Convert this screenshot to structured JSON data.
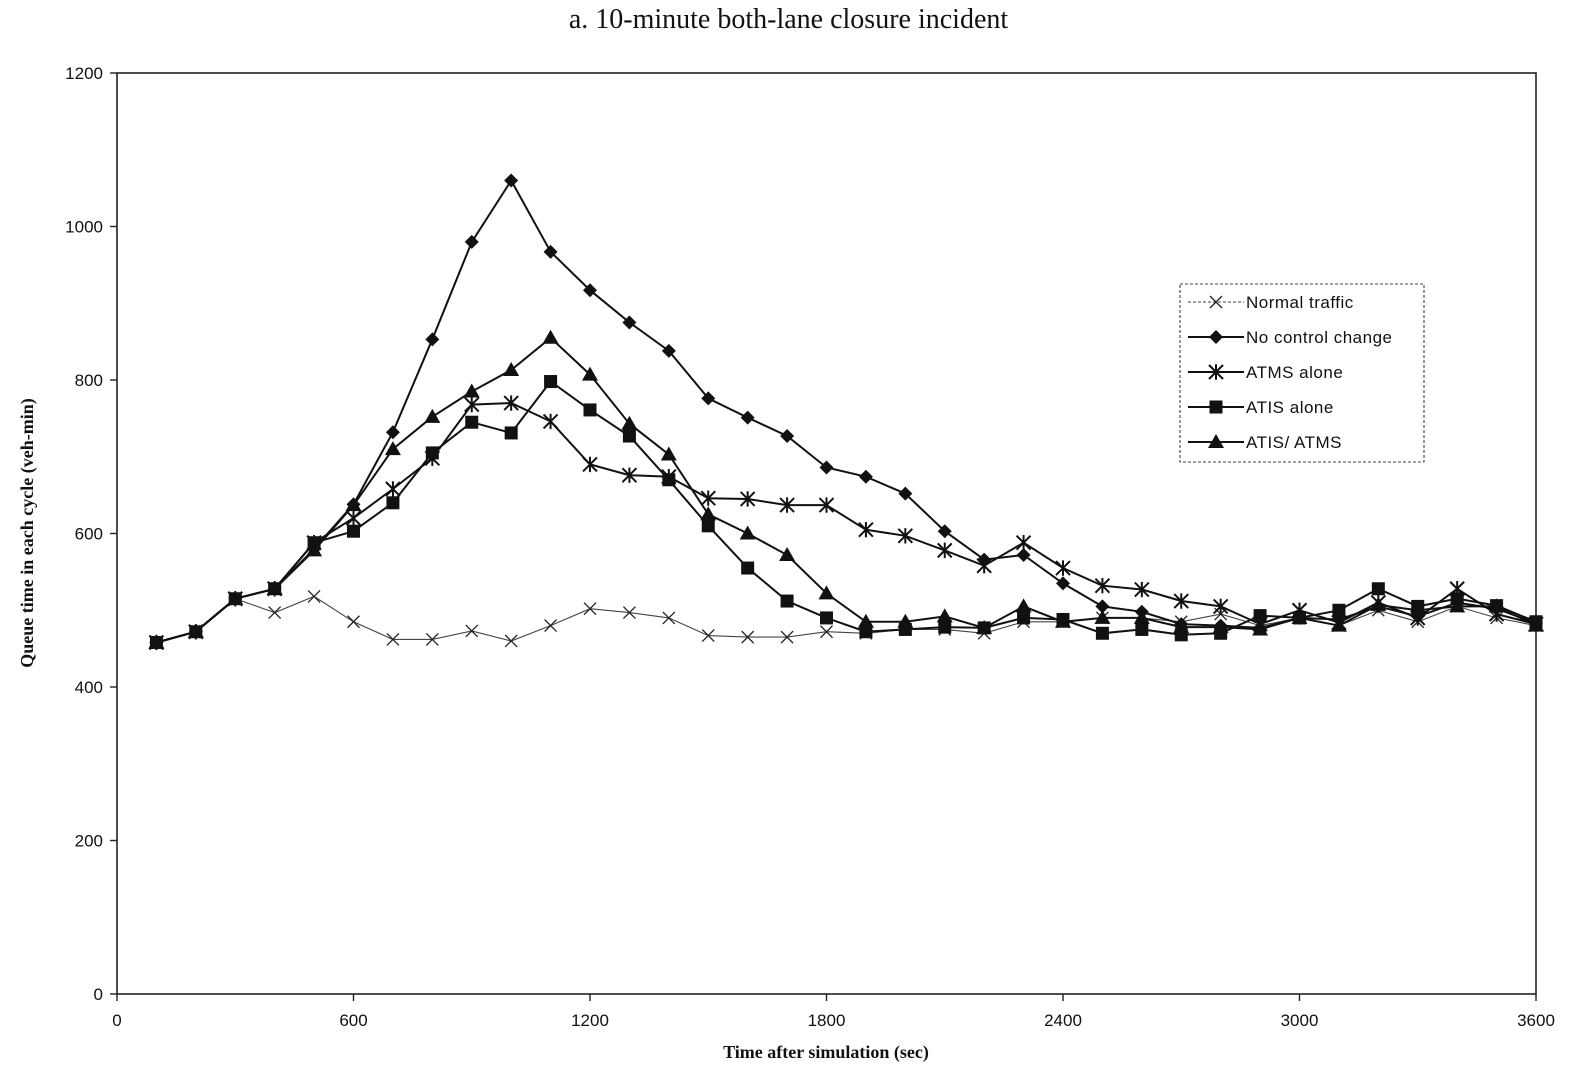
{
  "chart_data": {
    "type": "line",
    "title": "a.  10-minute both-lane closure incident",
    "xlabel": "Time after simulation (sec)",
    "ylabel": "Queue time in each cycle (veh-min)",
    "xlim": [
      0,
      3600
    ],
    "ylim": [
      0,
      1200
    ],
    "xticks": [
      "0",
      "600",
      "1200",
      "1800",
      "2400",
      "3000",
      "3600"
    ],
    "yticks": [
      "0",
      "200",
      "400",
      "600",
      "800",
      "1000",
      "1200"
    ],
    "grid": false,
    "legend_position": "right",
    "x": [
      100,
      200,
      300,
      400,
      500,
      600,
      700,
      800,
      900,
      1000,
      1100,
      1200,
      1300,
      1400,
      1500,
      1600,
      1700,
      1800,
      1900,
      2000,
      2100,
      2200,
      2300,
      2400,
      2500,
      2600,
      2700,
      2800,
      2900,
      3000,
      3100,
      3200,
      3300,
      3400,
      3500,
      3600
    ],
    "series": [
      {
        "name": "Normal traffic",
        "marker": "x",
        "values": [
          458,
          472,
          515,
          497,
          518,
          485,
          462,
          462,
          473,
          460,
          480,
          502,
          497,
          490,
          467,
          465,
          465,
          472,
          470,
          475,
          475,
          470,
          485,
          485,
          490,
          490,
          485,
          495,
          480,
          490,
          480,
          500,
          485,
          505,
          490,
          480
        ]
      },
      {
        "name": "No control change",
        "marker": "diamond",
        "values": [
          458,
          472,
          515,
          528,
          580,
          638,
          732,
          853,
          980,
          1060,
          967,
          917,
          875,
          838,
          776,
          751,
          727,
          686,
          674,
          652,
          603,
          566,
          572,
          535,
          505,
          498,
          482,
          480,
          477,
          490,
          488,
          505,
          492,
          510,
          502,
          483
        ]
      },
      {
        "name": "ATMS alone",
        "marker": "asterisk",
        "values": [
          458,
          472,
          515,
          528,
          588,
          620,
          658,
          698,
          768,
          770,
          746,
          690,
          676,
          674,
          646,
          645,
          637,
          637,
          605,
          597,
          578,
          558,
          588,
          555,
          532,
          527,
          512,
          505,
          482,
          500,
          484,
          510,
          490,
          528,
          495,
          482
        ]
      },
      {
        "name": "ATIS alone",
        "marker": "square",
        "values": [
          458,
          472,
          515,
          528,
          588,
          603,
          640,
          705,
          745,
          731,
          798,
          761,
          727,
          670,
          610,
          555,
          512,
          490,
          472,
          475,
          478,
          477,
          490,
          488,
          470,
          475,
          468,
          470,
          493,
          490,
          500,
          528,
          505,
          515,
          506,
          485
        ]
      },
      {
        "name": "ATIS/ ATMS",
        "marker": "triangle",
        "values": [
          458,
          472,
          515,
          528,
          578,
          637,
          710,
          752,
          785,
          813,
          855,
          807,
          743,
          703,
          625,
          600,
          572,
          522,
          485,
          485,
          492,
          477,
          505,
          485,
          490,
          490,
          478,
          478,
          475,
          490,
          480,
          507,
          500,
          505,
          505,
          480
        ]
      }
    ]
  }
}
